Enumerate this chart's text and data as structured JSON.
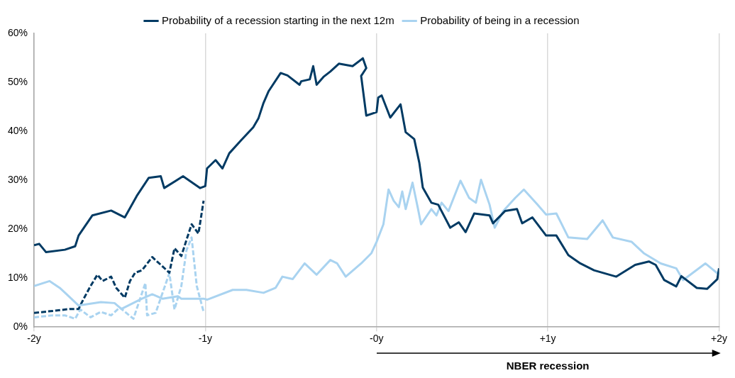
{
  "chart_data": {
    "type": "line",
    "xlim": [
      -2,
      2
    ],
    "xticks": [
      {
        "value": -2,
        "label": "-2y"
      },
      {
        "value": -1,
        "label": "-1y"
      },
      {
        "value": 0,
        "label": "-0y"
      },
      {
        "value": 1,
        "label": "+1y"
      },
      {
        "value": 2,
        "label": "+2y"
      }
    ],
    "ylim": [
      0,
      60
    ],
    "yticks": [
      {
        "value": 0,
        "label": "0%"
      },
      {
        "value": 10,
        "label": "10%"
      },
      {
        "value": 20,
        "label": "20%"
      },
      {
        "value": 30,
        "label": "30%"
      },
      {
        "value": 40,
        "label": "40%"
      },
      {
        "value": 50,
        "label": "50%"
      },
      {
        "value": 60,
        "label": "60%"
      }
    ],
    "grid": "x",
    "legend": "top",
    "marker": "none",
    "line_style": "solid",
    "series": [
      {
        "name": "Probability of a recession starting in the next 12m",
        "color": "#003a63",
        "x": [
          -2.0,
          -1.97,
          -1.93,
          -1.82,
          -1.76,
          -1.74,
          -1.66,
          -1.55,
          -1.47,
          -1.4,
          -1.33,
          -1.26,
          -1.24,
          -1.13,
          -1.03,
          -1.0,
          -0.99,
          -0.94,
          -0.9,
          -0.86,
          -0.79,
          -0.72,
          -0.69,
          -0.66,
          -0.63,
          -0.56,
          -0.52,
          -0.45,
          -0.44,
          -0.39,
          -0.37,
          -0.35,
          -0.31,
          -0.27,
          -0.22,
          -0.14,
          -0.08,
          -0.06,
          -0.09,
          -0.06,
          0.0,
          0.01,
          0.03,
          0.08,
          0.14,
          0.17,
          0.22,
          0.25,
          0.27,
          0.32,
          0.36,
          0.43,
          0.48,
          0.52,
          0.57,
          0.66,
          0.68,
          0.75,
          0.82,
          0.85,
          0.91,
          0.99,
          1.05,
          1.12,
          1.19,
          1.27,
          1.4,
          1.51,
          1.59,
          1.63,
          1.68,
          1.75,
          1.78,
          1.87,
          1.93,
          1.99,
          2.0
        ],
        "values": [
          16.7,
          17.0,
          15.3,
          15.8,
          16.5,
          18.7,
          22.8,
          23.8,
          22.4,
          26.8,
          30.5,
          30.8,
          28.4,
          30.8,
          28.4,
          28.8,
          32.4,
          34.1,
          32.4,
          35.5,
          38.2,
          40.8,
          42.6,
          45.8,
          48.2,
          51.9,
          51.4,
          49.5,
          50.2,
          50.6,
          53.3,
          49.5,
          51.1,
          52.2,
          53.8,
          53.3,
          54.9,
          52.9,
          51.3,
          43.2,
          43.9,
          46.9,
          47.3,
          42.8,
          45.5,
          39.8,
          38.4,
          33.5,
          28.5,
          25.4,
          25.0,
          20.3,
          21.4,
          19.4,
          23.2,
          22.8,
          21.2,
          23.7,
          24.1,
          21.2,
          22.4,
          18.7,
          18.7,
          14.7,
          13.0,
          11.6,
          10.3,
          12.7,
          13.4,
          12.7,
          9.6,
          8.3,
          10.4,
          8.0,
          7.8,
          9.8,
          12.0
        ]
      },
      {
        "name": "Probability of being in a recession",
        "color": "#a9d3f0",
        "x": [
          -2.0,
          -1.91,
          -1.85,
          -1.81,
          -1.74,
          -1.61,
          -1.53,
          -1.49,
          -1.37,
          -1.31,
          -1.25,
          -1.16,
          -1.14,
          -1.01,
          -0.99,
          -0.84,
          -0.76,
          -0.66,
          -0.59,
          -0.55,
          -0.49,
          -0.42,
          -0.35,
          -0.27,
          -0.23,
          -0.18,
          -0.09,
          -0.03,
          0.0,
          0.04,
          0.07,
          0.1,
          0.13,
          0.15,
          0.17,
          0.21,
          0.24,
          0.26,
          0.32,
          0.35,
          0.38,
          0.42,
          0.49,
          0.54,
          0.58,
          0.61,
          0.66,
          0.69,
          0.74,
          0.81,
          0.86,
          0.94,
          0.99,
          1.05,
          1.12,
          1.23,
          1.32,
          1.38,
          1.49,
          1.56,
          1.66,
          1.75,
          1.79,
          1.92,
          2.0
        ],
        "values": [
          8.4,
          9.4,
          8.0,
          6.7,
          4.4,
          5.1,
          4.9,
          3.7,
          5.8,
          6.7,
          5.8,
          6.3,
          5.8,
          5.8,
          5.6,
          7.6,
          7.6,
          7.0,
          8.0,
          10.3,
          9.8,
          13.0,
          10.7,
          13.7,
          13.0,
          10.3,
          13.0,
          15.1,
          17.4,
          21.0,
          28.1,
          25.8,
          24.5,
          27.7,
          24.1,
          29.5,
          24.5,
          21.0,
          24.1,
          22.8,
          25.4,
          23.7,
          29.9,
          26.4,
          25.4,
          30.1,
          25.0,
          20.3,
          23.7,
          26.4,
          28.1,
          25.0,
          23.0,
          23.2,
          18.3,
          18.0,
          21.8,
          18.3,
          17.4,
          15.1,
          13.0,
          12.0,
          9.6,
          13.0,
          10.7
        ]
      },
      {
        "color": "#003a63",
        "line_style": "dashed",
        "x": [
          -2.0,
          -1.89,
          -1.79,
          -1.74,
          -1.71,
          -1.67,
          -1.63,
          -1.6,
          -1.55,
          -1.52,
          -1.47,
          -1.44,
          -1.41,
          -1.37,
          -1.31,
          -1.25,
          -1.21,
          -1.18,
          -1.14,
          -1.11,
          -1.08,
          -1.04,
          -1.01
        ],
        "values": [
          2.9,
          3.3,
          3.7,
          3.7,
          5.8,
          8.4,
          10.7,
          9.4,
          10.3,
          8.0,
          6.0,
          9.4,
          11.1,
          11.6,
          14.3,
          12.4,
          11.1,
          16.1,
          14.5,
          17.8,
          21.0,
          19.1,
          25.8
        ]
      },
      {
        "color": "#a9d3f0",
        "line_style": "dashed",
        "x": [
          -2.0,
          -1.89,
          -1.82,
          -1.76,
          -1.73,
          -1.67,
          -1.61,
          -1.55,
          -1.5,
          -1.42,
          -1.35,
          -1.34,
          -1.29,
          -1.21,
          -1.18,
          -1.14,
          -1.11,
          -1.08,
          -1.05,
          -1.01
        ],
        "values": [
          2.0,
          2.4,
          2.4,
          1.7,
          3.6,
          2.0,
          3.1,
          2.4,
          4.0,
          1.7,
          9.0,
          2.4,
          2.9,
          11.0,
          3.6,
          8.4,
          15.7,
          18.3,
          8.4,
          3.1
        ]
      }
    ],
    "annotations": [
      "NBER recession"
    ]
  }
}
